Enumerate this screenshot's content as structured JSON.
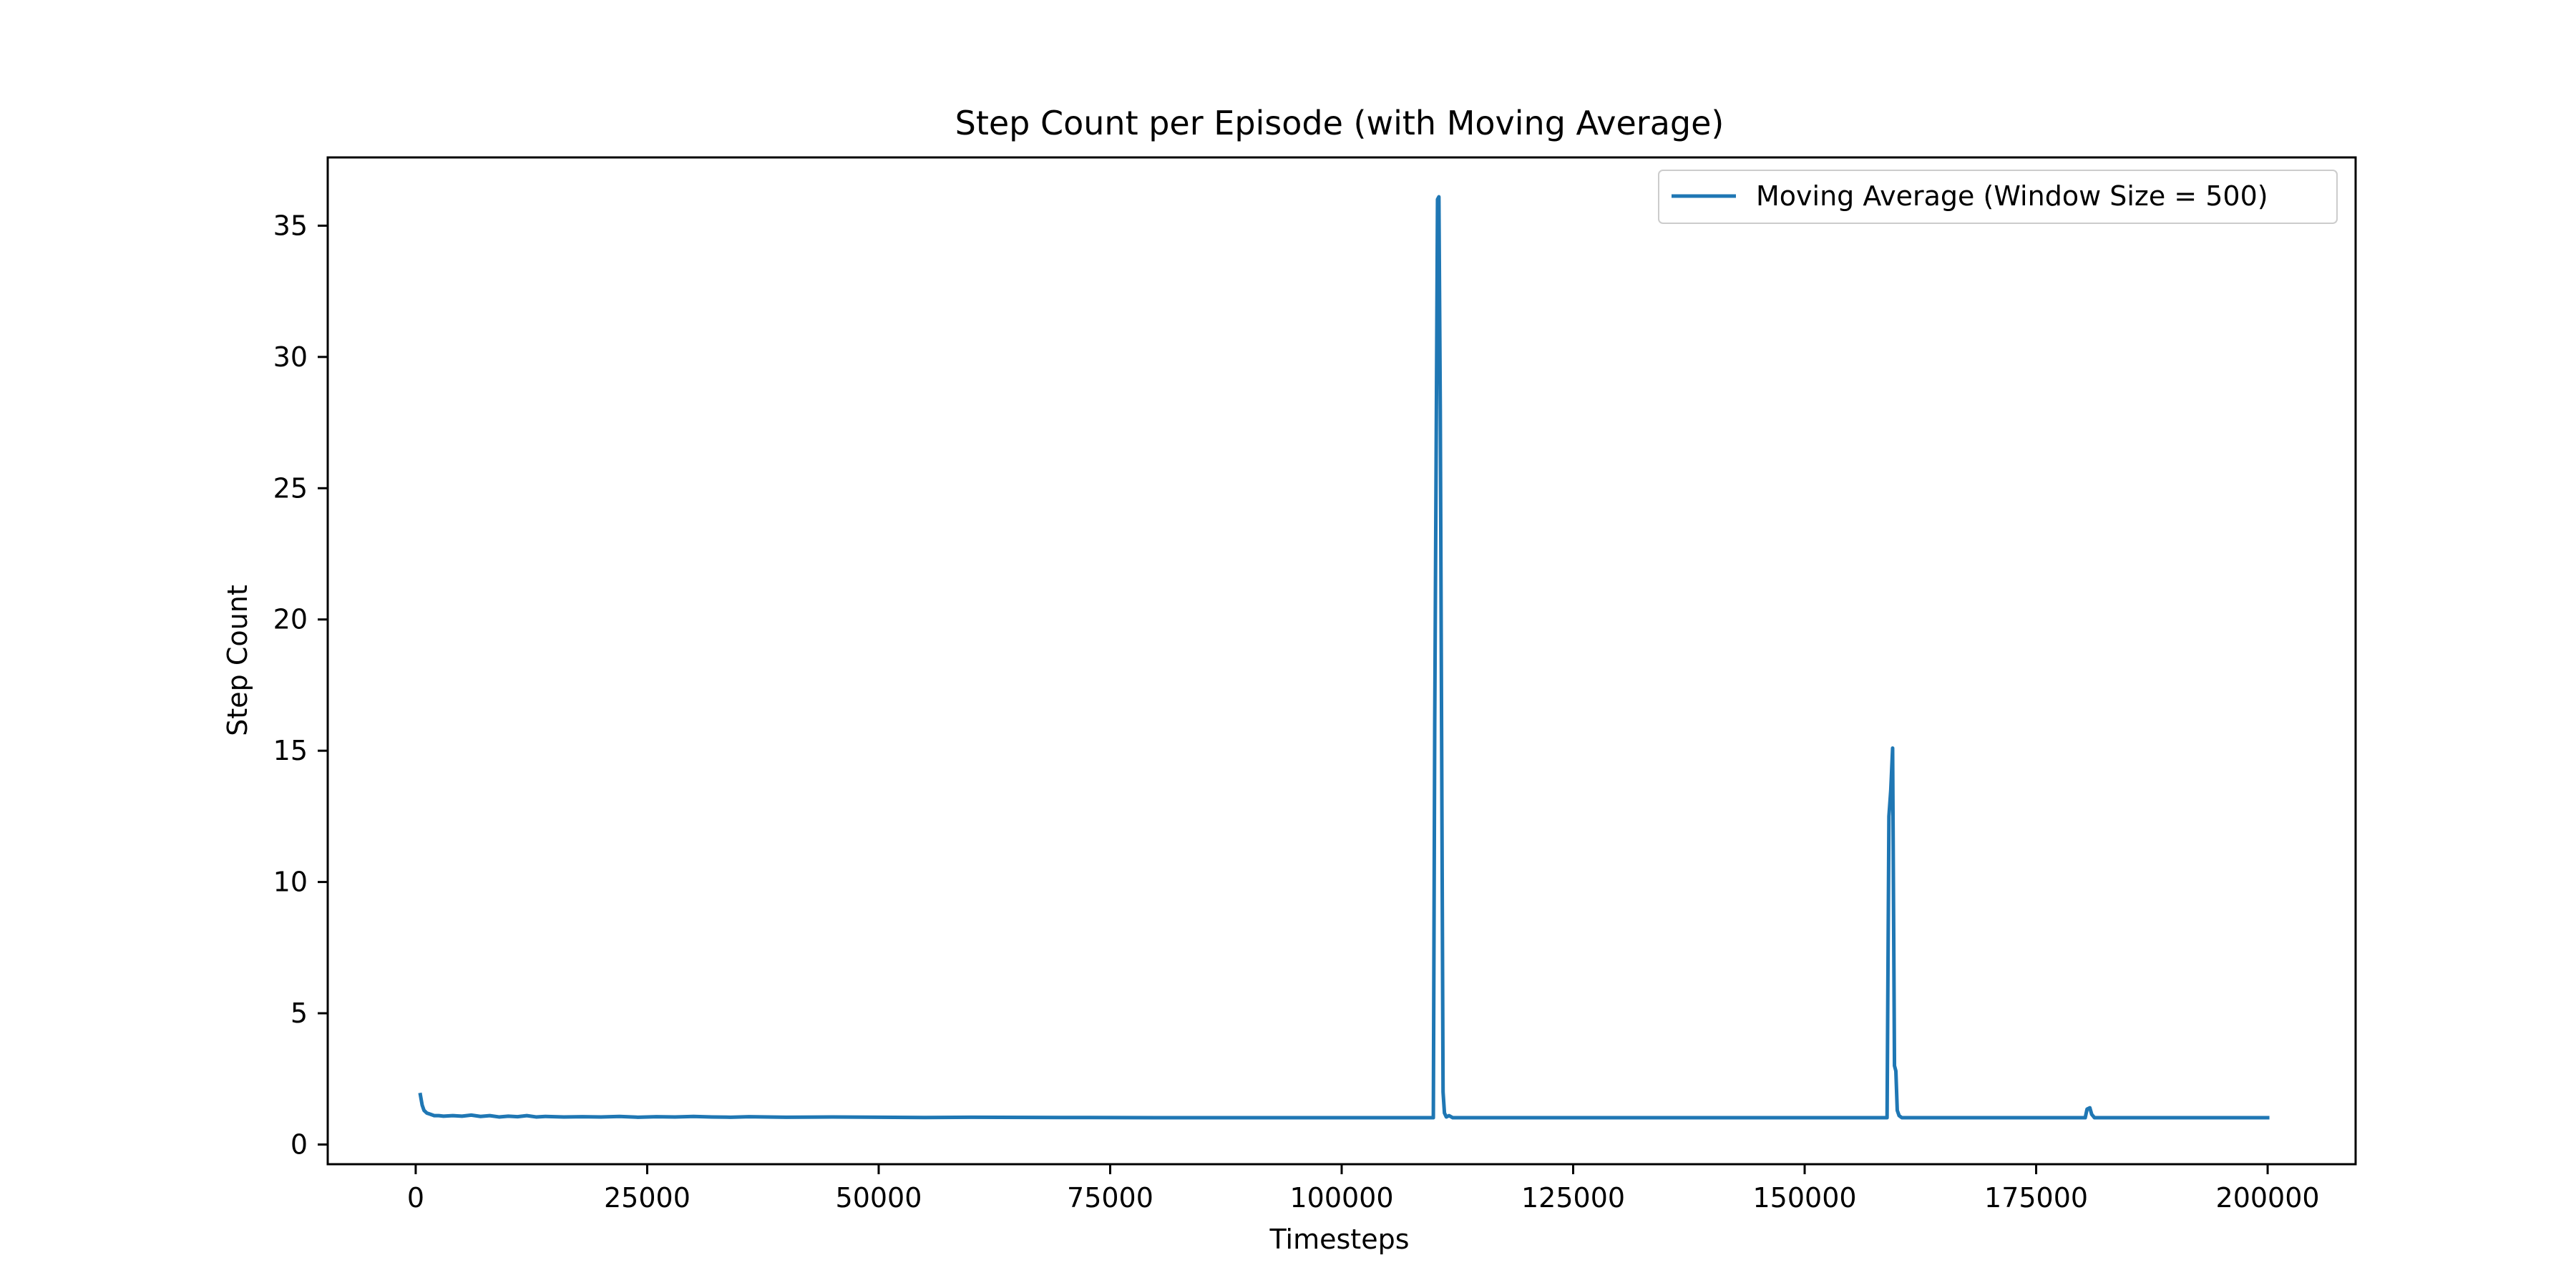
{
  "chart_data": {
    "type": "line",
    "title": "Step Count per Episode (with Moving Average)",
    "xlabel": "Timesteps",
    "ylabel": "Step Count",
    "xlim": [
      -9500,
      209500
    ],
    "ylim": [
      -0.75,
      37.6
    ],
    "xticks": [
      0,
      25000,
      50000,
      75000,
      100000,
      125000,
      150000,
      175000,
      200000
    ],
    "yticks": [
      0,
      5,
      10,
      15,
      20,
      25,
      30,
      35
    ],
    "grid": false,
    "legend_position": "upper right",
    "series": [
      {
        "name": "Moving Average (Window Size = 500)",
        "color": "#1f77b4",
        "x": [
          500,
          700,
          900,
          1200,
          1600,
          2000,
          2500,
          3000,
          4000,
          5000,
          6000,
          7000,
          8000,
          9000,
          10000,
          11000,
          12000,
          13000,
          14000,
          15000,
          16000,
          18000,
          20000,
          22000,
          24000,
          26000,
          28000,
          30000,
          32000,
          34000,
          36000,
          40000,
          45000,
          50000,
          55000,
          60000,
          70000,
          80000,
          90000,
          100000,
          105000,
          109900,
          110050,
          110200,
          110350,
          110500,
          110650,
          110800,
          110950,
          111100,
          111300,
          111600,
          112000,
          115000,
          120000,
          130000,
          140000,
          150000,
          158900,
          159100,
          159300,
          159500,
          159700,
          159850,
          160000,
          160200,
          160500,
          161000,
          165000,
          170000,
          175000,
          180300,
          180500,
          180800,
          181000,
          181300,
          185000,
          190000,
          195000,
          200000
        ],
        "y": [
          1.9,
          1.5,
          1.3,
          1.2,
          1.15,
          1.1,
          1.1,
          1.08,
          1.1,
          1.08,
          1.12,
          1.07,
          1.1,
          1.05,
          1.08,
          1.06,
          1.1,
          1.05,
          1.07,
          1.06,
          1.05,
          1.06,
          1.05,
          1.07,
          1.04,
          1.06,
          1.05,
          1.07,
          1.05,
          1.04,
          1.06,
          1.04,
          1.05,
          1.04,
          1.03,
          1.04,
          1.03,
          1.02,
          1.02,
          1.02,
          1.02,
          1.02,
          16.0,
          26.0,
          36.0,
          36.1,
          28.0,
          15.0,
          2.0,
          1.2,
          1.05,
          1.1,
          1.02,
          1.02,
          1.02,
          1.02,
          1.02,
          1.02,
          1.02,
          12.5,
          13.5,
          15.1,
          3.0,
          2.8,
          1.3,
          1.1,
          1.02,
          1.02,
          1.02,
          1.02,
          1.02,
          1.02,
          1.35,
          1.4,
          1.15,
          1.02,
          1.02,
          1.02,
          1.02,
          1.02
        ]
      }
    ]
  }
}
